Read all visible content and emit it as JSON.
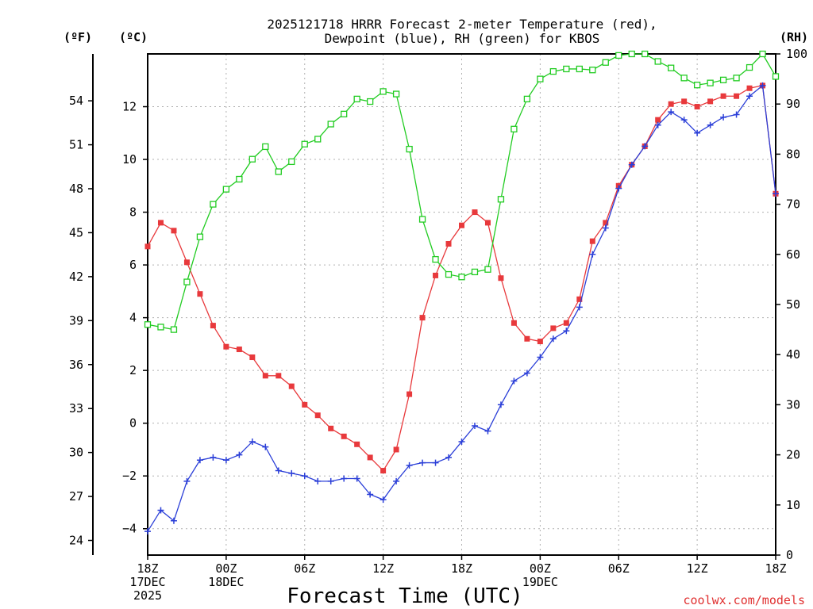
{
  "chart_data": {
    "type": "line",
    "title_line1": "2025121718 HRRR Forecast 2-meter Temperature (red),",
    "title_line2": "Dewpoint (blue), RH (green) for KBOS",
    "xlabel": "Forecast Time (UTC)",
    "credit": "coolwx.com/models",
    "units": {
      "fahrenheit": "(ºF)",
      "celsius": "(ºC)",
      "rh": "(RH)"
    },
    "x_range_hours": [
      0,
      48
    ],
    "celsius_range": [
      -5,
      14
    ],
    "rh_range": [
      0,
      100
    ],
    "x_ticks": [
      {
        "hour": 0,
        "lines": [
          "18Z",
          "17DEC",
          "2025"
        ]
      },
      {
        "hour": 6,
        "lines": [
          "00Z",
          "18DEC"
        ]
      },
      {
        "hour": 12,
        "lines": [
          "06Z"
        ]
      },
      {
        "hour": 18,
        "lines": [
          "12Z"
        ]
      },
      {
        "hour": 24,
        "lines": [
          "18Z"
        ]
      },
      {
        "hour": 30,
        "lines": [
          "00Z",
          "19DEC"
        ]
      },
      {
        "hour": 36,
        "lines": [
          "06Z"
        ]
      },
      {
        "hour": 42,
        "lines": [
          "12Z"
        ]
      },
      {
        "hour": 48,
        "lines": [
          "18Z"
        ]
      }
    ],
    "celsius_ticks": [
      -4,
      -2,
      0,
      2,
      4,
      6,
      8,
      10,
      12
    ],
    "fahrenheit_ticks": [
      24,
      27,
      30,
      33,
      36,
      39,
      42,
      45,
      48,
      51,
      54
    ],
    "rh_ticks": [
      0,
      10,
      20,
      30,
      40,
      50,
      60,
      70,
      80,
      90,
      100
    ],
    "hours": [
      0,
      1,
      2,
      3,
      4,
      5,
      6,
      7,
      8,
      9,
      10,
      11,
      12,
      13,
      14,
      15,
      16,
      17,
      18,
      19,
      20,
      21,
      22,
      23,
      24,
      25,
      26,
      27,
      28,
      29,
      30,
      31,
      32,
      33,
      34,
      35,
      36,
      37,
      38,
      39,
      40,
      41,
      42,
      43,
      44,
      45,
      46,
      47,
      48
    ],
    "series": [
      {
        "name": "Temperature (°C)",
        "color": "#e8393c",
        "marker": "filled-square",
        "axis": "celsius",
        "values": [
          6.7,
          7.6,
          7.3,
          6.1,
          4.9,
          3.7,
          2.9,
          2.8,
          2.5,
          1.8,
          1.8,
          1.4,
          0.7,
          0.3,
          -0.2,
          -0.5,
          -0.8,
          -1.3,
          -1.8,
          -1.0,
          1.1,
          4.0,
          5.6,
          6.8,
          7.5,
          8.0,
          7.6,
          5.5,
          3.8,
          3.2,
          3.1,
          3.6,
          3.8,
          4.7,
          6.9,
          7.6,
          9.0,
          9.8,
          10.5,
          11.5,
          12.1,
          12.2,
          12.0,
          12.2,
          12.4,
          12.4,
          12.7,
          12.8,
          8.7
        ]
      },
      {
        "name": "Dewpoint (°C)",
        "color": "#2b3fd8",
        "marker": "plus",
        "axis": "celsius",
        "values": [
          -4.1,
          -3.3,
          -3.7,
          -2.2,
          -1.4,
          -1.3,
          -1.4,
          -1.2,
          -0.7,
          -0.9,
          -1.8,
          -1.9,
          -2.0,
          -2.2,
          -2.2,
          -2.1,
          -2.1,
          -2.7,
          -2.9,
          -2.2,
          -1.6,
          -1.5,
          -1.5,
          -1.3,
          -0.7,
          -0.1,
          -0.3,
          0.7,
          1.6,
          1.9,
          2.5,
          3.2,
          3.5,
          4.4,
          6.4,
          7.4,
          8.9,
          9.8,
          10.5,
          11.3,
          11.8,
          11.5,
          11.0,
          11.3,
          11.6,
          11.7,
          12.4,
          12.8,
          8.7
        ]
      },
      {
        "name": "RH (%)",
        "color": "#22cc22",
        "marker": "open-square",
        "axis": "rh",
        "values": [
          46,
          45.5,
          45,
          54.5,
          63.5,
          70,
          73,
          75,
          79,
          81.5,
          76.5,
          78.5,
          82,
          83,
          86,
          88,
          91,
          90.5,
          92.5,
          92,
          81,
          67,
          59,
          56,
          55.5,
          56.5,
          57,
          71,
          85,
          91,
          95,
          96.5,
          97,
          97,
          96.8,
          98.3,
          99.7,
          100,
          100,
          98.5,
          97.2,
          95.2,
          93.8,
          94.2,
          94.8,
          95.2,
          97.3,
          100,
          95.5
        ]
      }
    ]
  }
}
